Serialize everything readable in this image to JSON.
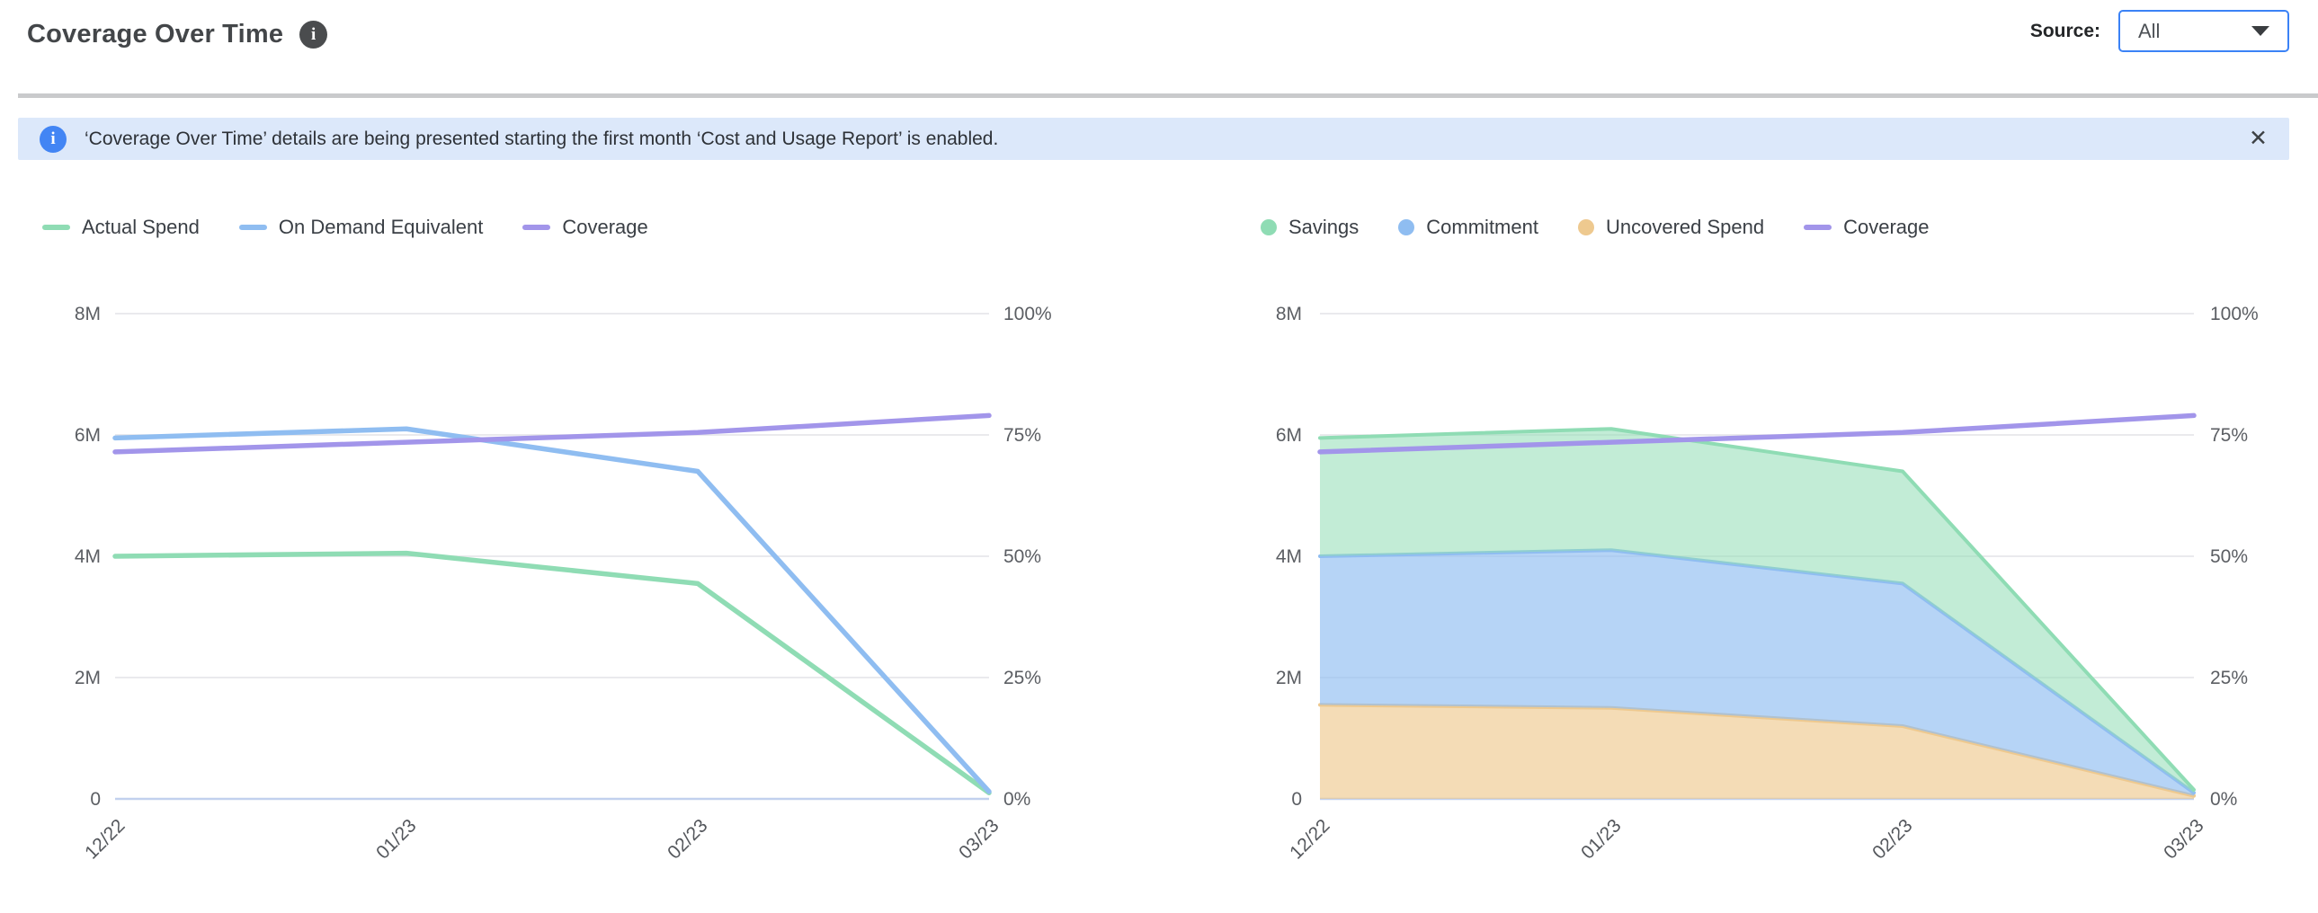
{
  "header": {
    "title": "Coverage Over Time",
    "info_icon": "i",
    "source_label": "Source:",
    "source_value": "All"
  },
  "banner": {
    "icon": "i",
    "text": "‘Coverage Over Time’ details are being presented starting the first month ‘Cost and Usage Report’ is enabled.",
    "close_icon": "✕"
  },
  "colors": {
    "green": "#8fdcb4",
    "blue": "#8fbdf1",
    "purple": "#a295ea",
    "orange": "#eec98f",
    "grid": "#e4e4e7",
    "axis_baseline": "#c2d1ee",
    "axis_text": "#5b5e63",
    "banner_bg": "#dce8fa",
    "banner_icon_bg": "#4285f4",
    "dropdown_border": "#3b82f6"
  },
  "chart_data": [
    {
      "type": "line",
      "title": "",
      "categories": [
        "12/22",
        "01/23",
        "02/23",
        "03/23"
      ],
      "series": [
        {
          "name": "Actual Spend",
          "kind": "line",
          "axis": "left",
          "color": "#8fdcb4",
          "values": [
            4.0,
            4.05,
            3.55,
            0.1
          ]
        },
        {
          "name": "On Demand Equivalent",
          "kind": "line",
          "axis": "left",
          "color": "#8fbdf1",
          "values": [
            5.95,
            6.1,
            5.4,
            0.12
          ]
        },
        {
          "name": "Coverage",
          "kind": "line",
          "axis": "right",
          "color": "#a295ea",
          "values": [
            71.5,
            73.5,
            75.5,
            79
          ]
        }
      ],
      "left_axis": {
        "ticks": [
          "8M",
          "6M",
          "4M",
          "2M",
          "0"
        ],
        "max": 8,
        "unit": "M (spend)"
      },
      "right_axis": {
        "ticks": [
          "100%",
          "75%",
          "50%",
          "25%",
          "0%"
        ],
        "max": 100,
        "unit": "% coverage"
      },
      "grid": true,
      "legend_position": "top-left"
    },
    {
      "type": "area",
      "title": "",
      "categories": [
        "12/22",
        "01/23",
        "02/23",
        "03/23"
      ],
      "series": [
        {
          "name": "Savings",
          "kind": "area",
          "stack_level": 3,
          "axis": "left",
          "color": "#8fdcb4",
          "fill_opacity": 0.55,
          "values": [
            1.95,
            2.0,
            1.85,
            0.05
          ]
        },
        {
          "name": "Commitment",
          "kind": "area",
          "stack_level": 2,
          "axis": "left",
          "color": "#8fbdf1",
          "fill_opacity": 0.65,
          "values": [
            2.45,
            2.6,
            2.35,
            0.05
          ]
        },
        {
          "name": "Uncovered Spend",
          "kind": "area",
          "stack_level": 1,
          "axis": "left",
          "color": "#eec98f",
          "fill_opacity": 0.65,
          "values": [
            1.55,
            1.5,
            1.2,
            0.05
          ]
        },
        {
          "name": "Coverage",
          "kind": "line",
          "axis": "right",
          "color": "#a295ea",
          "values": [
            71.5,
            73.5,
            75.5,
            79
          ]
        }
      ],
      "left_axis": {
        "ticks": [
          "8M",
          "6M",
          "4M",
          "2M",
          "0"
        ],
        "max": 8,
        "unit": "M (spend)"
      },
      "right_axis": {
        "ticks": [
          "100%",
          "75%",
          "50%",
          "25%",
          "0%"
        ],
        "max": 100,
        "unit": "% coverage"
      },
      "grid": true,
      "legend_position": "top-left"
    }
  ]
}
